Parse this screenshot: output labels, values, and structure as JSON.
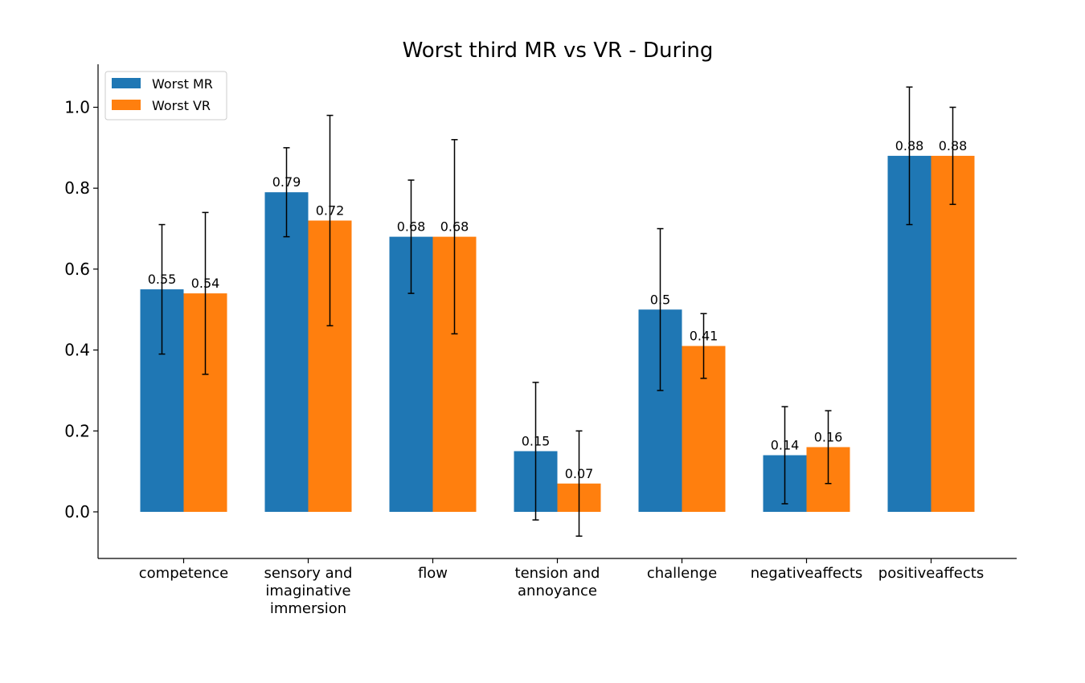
{
  "chart_data": {
    "type": "bar",
    "title": "Worst third MR vs VR - During",
    "xlabel": "",
    "ylabel": "",
    "ylim": [
      -0.115,
      1.105
    ],
    "yticks": [
      "0.0",
      "0.2",
      "0.4",
      "0.6",
      "0.8",
      "1.0"
    ],
    "categories": [
      [
        "competence"
      ],
      [
        "sensory and",
        "imaginative",
        "immersion"
      ],
      [
        "flow"
      ],
      [
        "tension and",
        "annoyance"
      ],
      [
        "challenge"
      ],
      [
        "negativeaffects"
      ],
      [
        "positiveaffects"
      ]
    ],
    "series": [
      {
        "name": "Worst MR",
        "color": "#1f77b4",
        "values": [
          0.55,
          0.79,
          0.68,
          0.15,
          0.5,
          0.14,
          0.88
        ],
        "labels": [
          "0.55",
          "0.79",
          "0.68",
          "0.15",
          "0.5",
          "0.14",
          "0.88"
        ],
        "err_low": [
          0.39,
          0.68,
          0.54,
          -0.02,
          0.3,
          0.02,
          0.71
        ],
        "err_high": [
          0.71,
          0.9,
          0.82,
          0.32,
          0.7,
          0.26,
          1.05
        ]
      },
      {
        "name": "Worst VR",
        "color": "#ff7f0e",
        "values": [
          0.54,
          0.72,
          0.68,
          0.07,
          0.41,
          0.16,
          0.88
        ],
        "labels": [
          "0.54",
          "0.72",
          "0.68",
          "0.07",
          "0.41",
          "0.16",
          "0.88"
        ],
        "err_low": [
          0.34,
          0.46,
          0.44,
          -0.06,
          0.33,
          0.07,
          0.76
        ],
        "err_high": [
          0.74,
          0.98,
          0.92,
          0.2,
          0.49,
          0.25,
          1.0
        ]
      }
    ],
    "legend_position": "top-left",
    "grid": false
  }
}
